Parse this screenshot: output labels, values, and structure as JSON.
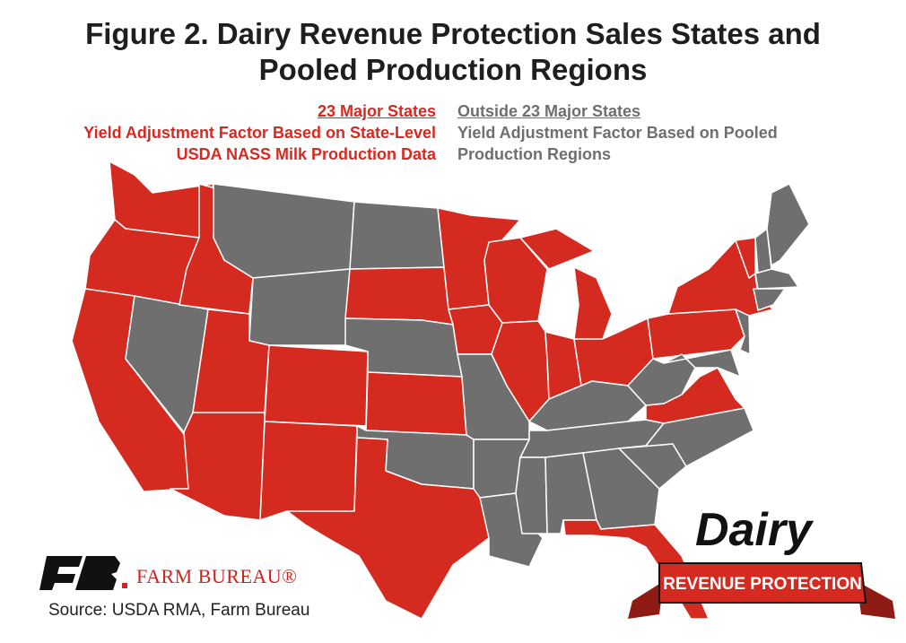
{
  "title": "Figure 2. Dairy Revenue Protection Sales States and Pooled Production Regions",
  "legend": {
    "major": {
      "heading": "23 Major States",
      "lines": [
        "Yield Adjustment Factor Based on State-Level",
        "USDA NASS Milk Production Data"
      ],
      "color": "#d42a20"
    },
    "pooled": {
      "heading": "Outside 23 Major States",
      "lines": [
        "Yield Adjustment Factor Based on Pooled",
        "Production Regions"
      ],
      "color": "#6f6f6f"
    }
  },
  "logo": {
    "farm_bureau": "FARM BUREAU®"
  },
  "badge": {
    "word": "Dairy",
    "banner": "REVENUE PROTECTION"
  },
  "source": "Source: USDA RMA, Farm Bureau"
}
